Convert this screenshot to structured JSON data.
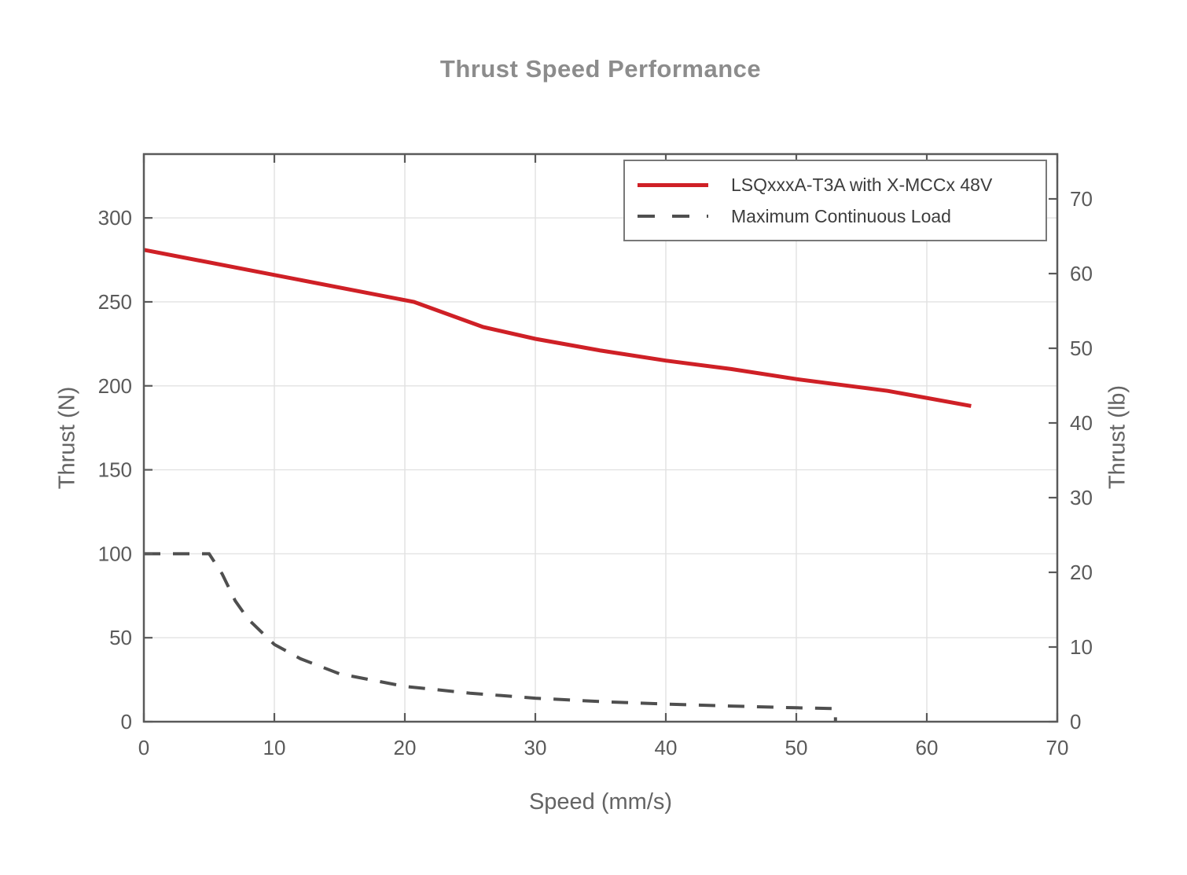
{
  "chart_data": {
    "type": "line",
    "title": "Thrust Speed Performance",
    "xlabel": "Speed (mm/s)",
    "ylabel_left": "Thrust (N)",
    "ylabel_right": "Thrust (lb)",
    "xlim": [
      0,
      70
    ],
    "ylim_left": [
      0,
      338
    ],
    "ylim_right": [
      0,
      76
    ],
    "x_ticks": [
      0,
      10,
      20,
      30,
      40,
      50,
      60,
      70
    ],
    "y_ticks_left": [
      0,
      50,
      100,
      150,
      200,
      250,
      300
    ],
    "y_ticks_right": [
      0,
      10,
      20,
      30,
      40,
      50,
      60,
      70
    ],
    "grid": true,
    "legend_position": "top-right",
    "series": [
      {
        "name": "LSQxxxA-T3A with X-MCCx 48V",
        "color": "#cf2026",
        "style": "solid",
        "axis": "left",
        "points": [
          [
            0,
            281
          ],
          [
            20.7,
            250
          ],
          [
            26,
            235
          ],
          [
            30,
            228
          ],
          [
            35,
            221
          ],
          [
            40,
            215
          ],
          [
            45,
            210
          ],
          [
            50,
            204
          ],
          [
            57,
            197
          ],
          [
            63.4,
            188
          ]
        ]
      },
      {
        "name": "Maximum Continuous Load",
        "color": "#4f4f4f",
        "style": "dashed",
        "axis": "left",
        "points": [
          [
            0,
            100
          ],
          [
            5,
            100
          ],
          [
            6,
            88
          ],
          [
            7,
            72
          ],
          [
            8,
            61
          ],
          [
            10,
            46
          ],
          [
            12,
            37.5
          ],
          [
            15,
            28.5
          ],
          [
            20,
            21
          ],
          [
            25,
            17
          ],
          [
            30,
            14
          ],
          [
            35,
            12
          ],
          [
            40,
            10.5
          ],
          [
            45,
            9.3
          ],
          [
            50,
            8.3
          ],
          [
            53,
            7.8
          ],
          [
            53,
            0
          ]
        ]
      }
    ]
  },
  "colors": {
    "axis": "#5a5a5a",
    "grid": "#e2e2e2",
    "tick_label": "#5a5a5a",
    "title": "#8c8c8c",
    "legend_border": "#787878",
    "legend_text": "#3d3d3d",
    "background": "#ffffff"
  }
}
